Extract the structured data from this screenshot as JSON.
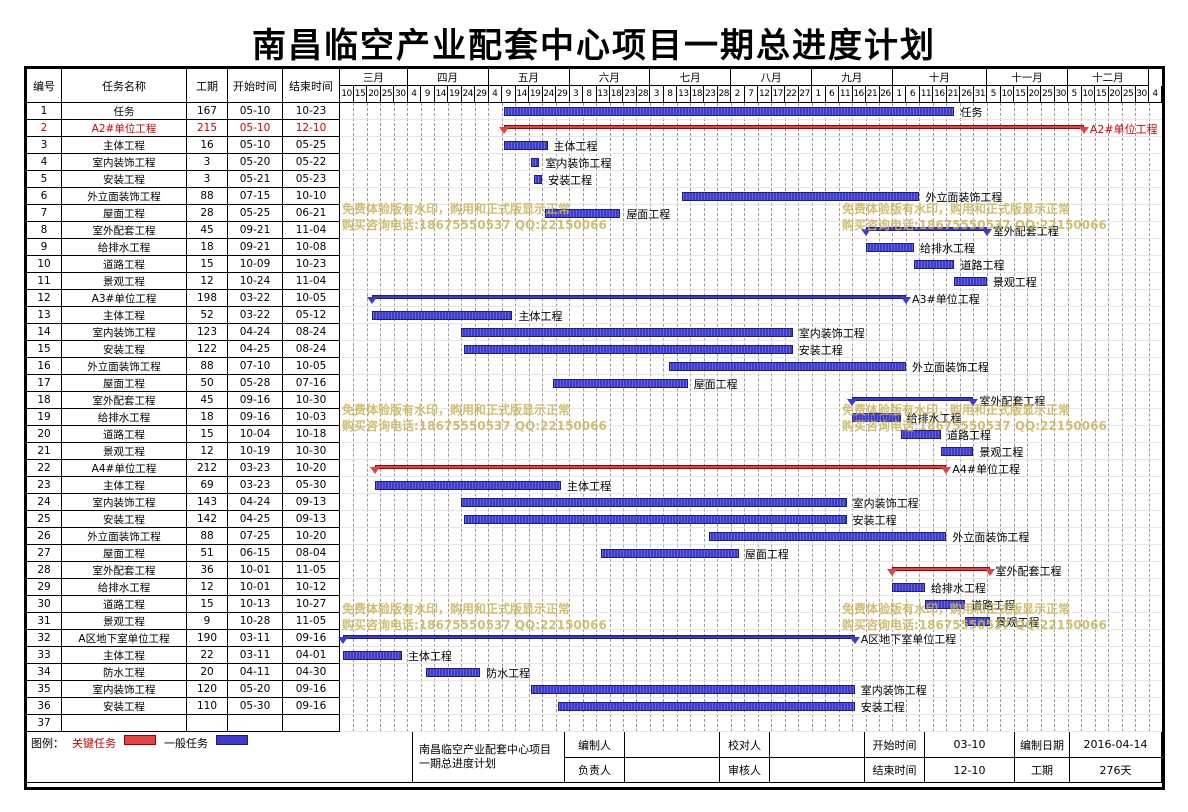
{
  "title": "南昌临空产业配套中心项目一期总进度计划",
  "columns": {
    "id": "编号",
    "name": "任务名称",
    "duration": "工期",
    "start": "开始时间",
    "end": "结束时间"
  },
  "months": [
    "三月",
    "四月",
    "五月",
    "六月",
    "七月",
    "八月",
    "九月",
    "十月",
    "十一月",
    "十二月"
  ],
  "days": [
    "10",
    "15",
    "20",
    "25",
    "30",
    "4",
    "9",
    "14",
    "19",
    "24",
    "29",
    "4",
    "9",
    "14",
    "19",
    "24",
    "29",
    "3",
    "8",
    "13",
    "18",
    "23",
    "28",
    "3",
    "8",
    "13",
    "18",
    "23",
    "28",
    "2",
    "7",
    "12",
    "17",
    "22",
    "27",
    "1",
    "6",
    "11",
    "16",
    "21",
    "26",
    "1",
    "6",
    "11",
    "16",
    "21",
    "26",
    "31",
    "5",
    "10",
    "15",
    "20",
    "25",
    "30",
    "5",
    "10",
    "15",
    "20",
    "25",
    "30",
    "4"
  ],
  "tasks": [
    {
      "id": "1",
      "name": "任务",
      "dur": "167",
      "start": "05-10",
      "end": "10-23",
      "critical": false,
      "summary": false,
      "label": "任务"
    },
    {
      "id": "2",
      "name": "A2#单位工程",
      "dur": "215",
      "start": "05-10",
      "end": "12-10",
      "critical": true,
      "summary": true,
      "label": "A2#单位工程"
    },
    {
      "id": "3",
      "name": "主体工程",
      "dur": "16",
      "start": "05-10",
      "end": "05-25",
      "critical": false,
      "summary": false,
      "label": "主体工程"
    },
    {
      "id": "4",
      "name": "室内装饰工程",
      "dur": "3",
      "start": "05-20",
      "end": "05-22",
      "critical": false,
      "summary": false,
      "label": "室内装饰工程"
    },
    {
      "id": "5",
      "name": "安装工程",
      "dur": "3",
      "start": "05-21",
      "end": "05-23",
      "critical": false,
      "summary": false,
      "label": "安装工程"
    },
    {
      "id": "6",
      "name": "外立面装饰工程",
      "dur": "88",
      "start": "07-15",
      "end": "10-10",
      "critical": false,
      "summary": false,
      "label": "外立面装饰工程"
    },
    {
      "id": "7",
      "name": "屋面工程",
      "dur": "28",
      "start": "05-25",
      "end": "06-21",
      "critical": false,
      "summary": false,
      "label": "屋面工程"
    },
    {
      "id": "8",
      "name": "室外配套工程",
      "dur": "45",
      "start": "09-21",
      "end": "11-04",
      "critical": false,
      "summary": true,
      "label": "室外配套工程"
    },
    {
      "id": "9",
      "name": "给排水工程",
      "dur": "18",
      "start": "09-21",
      "end": "10-08",
      "critical": false,
      "summary": false,
      "label": "给排水工程"
    },
    {
      "id": "10",
      "name": "道路工程",
      "dur": "15",
      "start": "10-09",
      "end": "10-23",
      "critical": false,
      "summary": false,
      "label": "道路工程"
    },
    {
      "id": "11",
      "name": "景观工程",
      "dur": "12",
      "start": "10-24",
      "end": "11-04",
      "critical": false,
      "summary": false,
      "label": "景观工程"
    },
    {
      "id": "12",
      "name": "A3#单位工程",
      "dur": "198",
      "start": "03-22",
      "end": "10-05",
      "critical": false,
      "summary": true,
      "label": "A3#单位工程"
    },
    {
      "id": "13",
      "name": "主体工程",
      "dur": "52",
      "start": "03-22",
      "end": "05-12",
      "critical": false,
      "summary": false,
      "label": "主体工程"
    },
    {
      "id": "14",
      "name": "室内装饰工程",
      "dur": "123",
      "start": "04-24",
      "end": "08-24",
      "critical": false,
      "summary": false,
      "label": "室内装饰工程"
    },
    {
      "id": "15",
      "name": "安装工程",
      "dur": "122",
      "start": "04-25",
      "end": "08-24",
      "critical": false,
      "summary": false,
      "label": "安装工程"
    },
    {
      "id": "16",
      "name": "外立面装饰工程",
      "dur": "88",
      "start": "07-10",
      "end": "10-05",
      "critical": false,
      "summary": false,
      "label": "外立面装饰工程"
    },
    {
      "id": "17",
      "name": "屋面工程",
      "dur": "50",
      "start": "05-28",
      "end": "07-16",
      "critical": false,
      "summary": false,
      "label": "屋面工程"
    },
    {
      "id": "18",
      "name": "室外配套工程",
      "dur": "45",
      "start": "09-16",
      "end": "10-30",
      "critical": false,
      "summary": true,
      "label": "室外配套工程"
    },
    {
      "id": "19",
      "name": "给排水工程",
      "dur": "18",
      "start": "09-16",
      "end": "10-03",
      "critical": false,
      "summary": false,
      "label": "给排水工程"
    },
    {
      "id": "20",
      "name": "道路工程",
      "dur": "15",
      "start": "10-04",
      "end": "10-18",
      "critical": false,
      "summary": false,
      "label": "道路工程"
    },
    {
      "id": "21",
      "name": "景观工程",
      "dur": "12",
      "start": "10-19",
      "end": "10-30",
      "critical": false,
      "summary": false,
      "label": "景观工程"
    },
    {
      "id": "22",
      "name": "A4#单位工程",
      "dur": "212",
      "start": "03-23",
      "end": "10-20",
      "critical": true,
      "summary": true,
      "label": "A4#单位工程"
    },
    {
      "id": "23",
      "name": "主体工程",
      "dur": "69",
      "start": "03-23",
      "end": "05-30",
      "critical": false,
      "summary": false,
      "label": "主体工程"
    },
    {
      "id": "24",
      "name": "室内装饰工程",
      "dur": "143",
      "start": "04-24",
      "end": "09-13",
      "critical": false,
      "summary": false,
      "label": "室内装饰工程"
    },
    {
      "id": "25",
      "name": "安装工程",
      "dur": "142",
      "start": "04-25",
      "end": "09-13",
      "critical": false,
      "summary": false,
      "label": "安装工程"
    },
    {
      "id": "26",
      "name": "外立面装饰工程",
      "dur": "88",
      "start": "07-25",
      "end": "10-20",
      "critical": false,
      "summary": false,
      "label": "外立面装饰工程"
    },
    {
      "id": "27",
      "name": "屋面工程",
      "dur": "51",
      "start": "06-15",
      "end": "08-04",
      "critical": false,
      "summary": false,
      "label": "屋面工程"
    },
    {
      "id": "28",
      "name": "室外配套工程",
      "dur": "36",
      "start": "10-01",
      "end": "11-05",
      "critical": true,
      "summary": true,
      "label": "室外配套工程"
    },
    {
      "id": "29",
      "name": "给排水工程",
      "dur": "12",
      "start": "10-01",
      "end": "10-12",
      "critical": false,
      "summary": false,
      "label": "给排水工程"
    },
    {
      "id": "30",
      "name": "道路工程",
      "dur": "15",
      "start": "10-13",
      "end": "10-27",
      "critical": false,
      "summary": false,
      "label": "道路工程"
    },
    {
      "id": "31",
      "name": "景观工程",
      "dur": "9",
      "start": "10-28",
      "end": "11-05",
      "critical": false,
      "summary": false,
      "label": "景观工程"
    },
    {
      "id": "32",
      "name": "A区地下室单位工程",
      "dur": "190",
      "start": "03-11",
      "end": "09-16",
      "critical": false,
      "summary": true,
      "label": "A区地下室单位工程"
    },
    {
      "id": "33",
      "name": "主体工程",
      "dur": "22",
      "start": "03-11",
      "end": "04-01",
      "critical": false,
      "summary": false,
      "label": "主体工程"
    },
    {
      "id": "34",
      "name": "防水工程",
      "dur": "20",
      "start": "04-11",
      "end": "04-30",
      "critical": false,
      "summary": false,
      "label": "防水工程"
    },
    {
      "id": "35",
      "name": "室内装饰工程",
      "dur": "120",
      "start": "05-20",
      "end": "09-16",
      "critical": false,
      "summary": false,
      "label": "室内装饰工程"
    },
    {
      "id": "36",
      "name": "安装工程",
      "dur": "110",
      "start": "05-30",
      "end": "09-16",
      "critical": false,
      "summary": false,
      "label": "安装工程"
    },
    {
      "id": "37",
      "name": "",
      "dur": "",
      "start": "",
      "end": "",
      "critical": false,
      "summary": false,
      "label": ""
    }
  ],
  "watermark": {
    "line1": "免费体验版有水印，购用和正式版显示正常",
    "line2": "购买咨询电话:18675550537 QQ:22150066"
  },
  "legend": {
    "label": "图例：",
    "critical": "关键任务",
    "normal": "一般任务"
  },
  "footer": {
    "project": "南昌临空产业配套中心项目一期总进度计划",
    "compiler_label": "编制人",
    "compiler": "",
    "checker_label": "校对人",
    "checker": "",
    "start_label": "开始时间",
    "start": "03-10",
    "date_label": "编制日期",
    "date": "2016-04-14",
    "owner_label": "负责人",
    "owner": "",
    "reviewer_label": "审核人",
    "reviewer": "",
    "end_label": "结束时间",
    "end": "12-10",
    "duration_label": "工期",
    "duration": "276天"
  },
  "colors": {
    "critical": "#e04545",
    "normal": "#3b3bd0"
  }
}
